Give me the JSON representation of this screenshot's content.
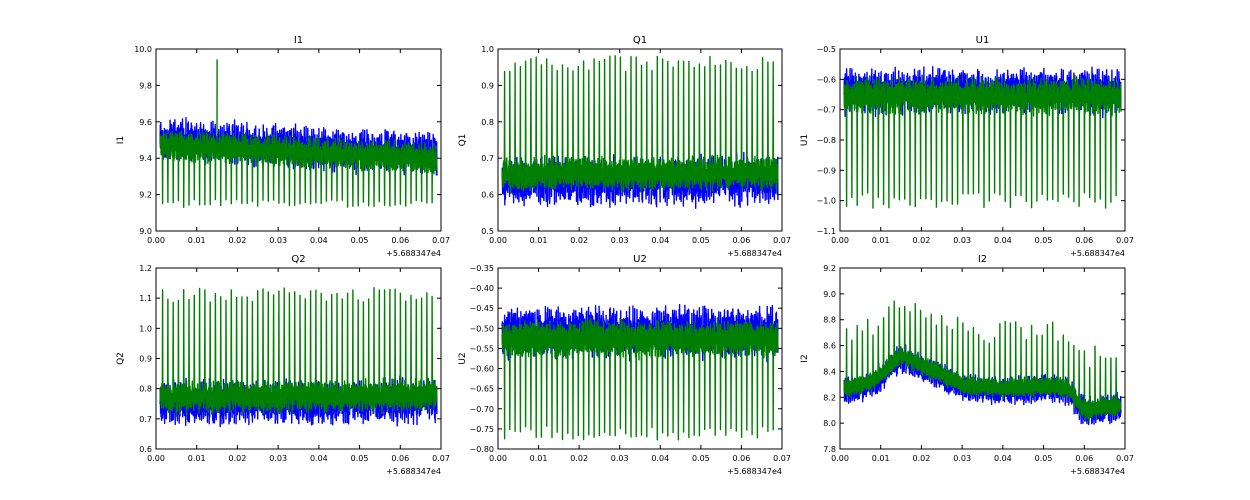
{
  "figure": {
    "background": "#ffffff"
  },
  "series_colors": {
    "blue": "#0000ff",
    "green": "#007f00"
  },
  "chart_data": [
    {
      "type": "line",
      "title": "I1",
      "ylabel": "I1",
      "xlim": [
        0.0,
        0.07
      ],
      "ylim": [
        9.0,
        10.0
      ],
      "xticks": [
        "0.00",
        "0.01",
        "0.02",
        "0.03",
        "0.04",
        "0.05",
        "0.06",
        "0.07"
      ],
      "yticks": [
        "9.0",
        "9.2",
        "9.4",
        "9.6",
        "9.8",
        "10.0"
      ],
      "x_offset_label": "+5.688347e4",
      "series": [
        {
          "name": "blue",
          "color": "#0000ff",
          "x_start": 0.001,
          "x_end": 0.069,
          "center_start": 9.5,
          "center_end": 9.42,
          "amplitude": 0.09,
          "jitter": 0.05
        },
        {
          "name": "green",
          "color": "#007f00",
          "x_start": 0.001,
          "x_end": 0.069,
          "center_start": 9.47,
          "center_end": 9.4,
          "amplitude": 0.07,
          "jitter": 0.03,
          "spike_direction": "down",
          "spike_target": 9.15,
          "spike_count": 52,
          "outliers": [
            {
              "x": 0.015,
              "y": 9.94
            }
          ]
        }
      ]
    },
    {
      "type": "line",
      "title": "Q1",
      "ylabel": "Q1",
      "xlim": [
        0.0,
        0.07
      ],
      "ylim": [
        0.5,
        1.0
      ],
      "xticks": [
        "0.00",
        "0.01",
        "0.02",
        "0.03",
        "0.04",
        "0.05",
        "0.06",
        "0.07"
      ],
      "yticks": [
        "0.5",
        "0.6",
        "0.7",
        "0.8",
        "0.9",
        "1.0"
      ],
      "x_offset_label": "+5.688347e4",
      "series": [
        {
          "name": "blue",
          "color": "#0000ff",
          "x_start": 0.001,
          "x_end": 0.069,
          "center_start": 0.635,
          "center_end": 0.64,
          "amplitude": 0.05,
          "jitter": 0.03
        },
        {
          "name": "green",
          "color": "#007f00",
          "x_start": 0.001,
          "x_end": 0.069,
          "center_start": 0.655,
          "center_end": 0.66,
          "amplitude": 0.04,
          "jitter": 0.015,
          "spike_direction": "up",
          "spike_target": 0.96,
          "spike_count": 52
        }
      ]
    },
    {
      "type": "line",
      "title": "U1",
      "ylabel": "U1",
      "xlim": [
        0.0,
        0.07
      ],
      "ylim": [
        -1.1,
        -0.5
      ],
      "xticks": [
        "0.00",
        "0.01",
        "0.02",
        "0.03",
        "0.04",
        "0.05",
        "0.06",
        "0.07"
      ],
      "yticks": [
        "−1.1",
        "−1.0",
        "−0.9",
        "−0.8",
        "−0.7",
        "−0.6",
        "−0.5"
      ],
      "x_offset_label": "+5.688347e4",
      "series": [
        {
          "name": "blue",
          "color": "#0000ff",
          "x_start": 0.001,
          "x_end": 0.069,
          "center_start": -0.64,
          "center_end": -0.64,
          "amplitude": 0.06,
          "jitter": 0.03
        },
        {
          "name": "green",
          "color": "#007f00",
          "x_start": 0.001,
          "x_end": 0.069,
          "center_start": -0.655,
          "center_end": -0.655,
          "amplitude": 0.05,
          "jitter": 0.02,
          "spike_direction": "down",
          "spike_target": -1.0,
          "spike_count": 52
        }
      ]
    },
    {
      "type": "line",
      "title": "Q2",
      "ylabel": "Q2",
      "xlim": [
        0.0,
        0.07
      ],
      "ylim": [
        0.6,
        1.2
      ],
      "xticks": [
        "0.00",
        "0.01",
        "0.02",
        "0.03",
        "0.04",
        "0.05",
        "0.06",
        "0.07"
      ],
      "yticks": [
        "0.6",
        "0.7",
        "0.8",
        "0.9",
        "1.0",
        "1.1",
        "1.2"
      ],
      "x_offset_label": "+5.688347e4",
      "series": [
        {
          "name": "blue",
          "color": "#0000ff",
          "x_start": 0.001,
          "x_end": 0.069,
          "center_start": 0.75,
          "center_end": 0.76,
          "amplitude": 0.06,
          "jitter": 0.03
        },
        {
          "name": "green",
          "color": "#007f00",
          "x_start": 0.001,
          "x_end": 0.069,
          "center_start": 0.77,
          "center_end": 0.78,
          "amplitude": 0.045,
          "jitter": 0.02,
          "spike_direction": "up",
          "spike_target": 1.11,
          "spike_count": 52
        }
      ]
    },
    {
      "type": "line",
      "title": "U2",
      "ylabel": "U2",
      "xlim": [
        0.0,
        0.07
      ],
      "ylim": [
        -0.8,
        -0.35
      ],
      "xticks": [
        "0.00",
        "0.01",
        "0.02",
        "0.03",
        "0.04",
        "0.05",
        "0.06",
        "0.07"
      ],
      "yticks": [
        "−0.80",
        "−0.75",
        "−0.70",
        "−0.65",
        "−0.60",
        "−0.55",
        "−0.50",
        "−0.45",
        "−0.40",
        "−0.35"
      ],
      "x_offset_label": "+5.688347e4",
      "series": [
        {
          "name": "blue",
          "color": "#0000ff",
          "x_start": 0.001,
          "x_end": 0.069,
          "center_start": -0.51,
          "center_end": -0.51,
          "amplitude": 0.05,
          "jitter": 0.025
        },
        {
          "name": "green",
          "color": "#007f00",
          "x_start": 0.001,
          "x_end": 0.069,
          "center_start": -0.525,
          "center_end": -0.525,
          "amplitude": 0.04,
          "jitter": 0.015,
          "spike_direction": "down",
          "spike_target": -0.76,
          "spike_count": 52
        }
      ]
    },
    {
      "type": "line",
      "title": "I2",
      "ylabel": "I2",
      "xlim": [
        0.0,
        0.07
      ],
      "ylim": [
        7.8,
        9.2
      ],
      "xticks": [
        "0.00",
        "0.01",
        "0.02",
        "0.03",
        "0.04",
        "0.05",
        "0.06",
        "0.07"
      ],
      "yticks": [
        "7.8",
        "8.0",
        "8.2",
        "8.4",
        "8.6",
        "8.8",
        "9.0",
        "9.2"
      ],
      "x_offset_label": "+5.688347e4",
      "trend_points": [
        [
          0.001,
          8.25
        ],
        [
          0.008,
          8.3
        ],
        [
          0.015,
          8.5
        ],
        [
          0.022,
          8.4
        ],
        [
          0.03,
          8.28
        ],
        [
          0.04,
          8.25
        ],
        [
          0.05,
          8.27
        ],
        [
          0.056,
          8.25
        ],
        [
          0.06,
          8.08
        ],
        [
          0.069,
          8.12
        ]
      ],
      "series": [
        {
          "name": "blue",
          "color": "#0000ff",
          "x_start": 0.001,
          "x_end": 0.069,
          "amplitude": 0.09,
          "jitter": 0.04
        },
        {
          "name": "green",
          "color": "#007f00",
          "x_start": 0.001,
          "x_end": 0.069,
          "amplitude": 0.07,
          "jitter": 0.02,
          "spike_direction": "up",
          "spike_offset": 0.5,
          "spike_count": 52
        }
      ]
    }
  ]
}
